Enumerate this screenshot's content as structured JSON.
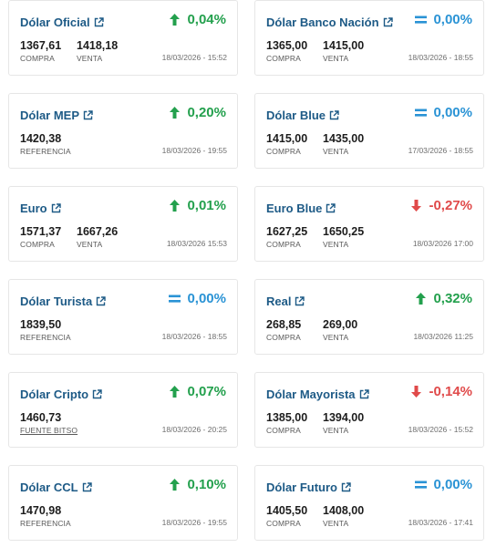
{
  "colors": {
    "up": "#23a04d",
    "down": "#e04a4a",
    "neutral": "#2a93d5",
    "title": "#1d5a86"
  },
  "cards": [
    {
      "title": "Dólar Oficial",
      "trend": "up",
      "change": "0,04%",
      "v1": "1367,61",
      "l1": "COMPRA",
      "v2": "1418,18",
      "l2": "VENTA",
      "date": "18/03/2026 - 15:52"
    },
    {
      "title": "Dólar Banco Nación",
      "trend": "eq",
      "change": "0,00%",
      "v1": "1365,00",
      "l1": "COMPRA",
      "v2": "1415,00",
      "l2": "VENTA",
      "date": "18/03/2026 - 18:55"
    },
    {
      "title": "Dólar MEP",
      "trend": "up",
      "change": "0,20%",
      "v1": "1420,38",
      "l1": "REFERENCIA",
      "date": "18/03/2026 - 19:55"
    },
    {
      "title": "Dólar Blue",
      "trend": "eq",
      "change": "0,00%",
      "v1": "1415,00",
      "l1": "COMPRA",
      "v2": "1435,00",
      "l2": "VENTA",
      "date": "17/03/2026 - 18:55"
    },
    {
      "title": "Euro",
      "trend": "up",
      "change": "0,01%",
      "v1": "1571,37",
      "l1": "COMPRA",
      "v2": "1667,26",
      "l2": "VENTA",
      "date": "18/03/2026 15:53"
    },
    {
      "title": "Euro Blue",
      "trend": "down",
      "change": "-0,27%",
      "v1": "1627,25",
      "l1": "COMPRA",
      "v2": "1650,25",
      "l2": "VENTA",
      "date": "18/03/2026 17:00"
    },
    {
      "title": "Dólar Turista",
      "trend": "eq",
      "change": "0,00%",
      "v1": "1839,50",
      "l1": "REFERENCIA",
      "date": "18/03/2026 - 18:55"
    },
    {
      "title": "Real",
      "trend": "up",
      "change": "0,32%",
      "v1": "268,85",
      "l1": "COMPRA",
      "v2": "269,00",
      "l2": "VENTA",
      "date": "18/03/2026 11:25"
    },
    {
      "title": "Dólar Cripto",
      "trend": "up",
      "change": "0,07%",
      "v1": "1460,73",
      "l1": "FUENTE BITSO",
      "l1_link": true,
      "date": "18/03/2026 - 20:25"
    },
    {
      "title": "Dólar Mayorista",
      "trend": "down",
      "change": "-0,14%",
      "v1": "1385,00",
      "l1": "COMPRA",
      "v2": "1394,00",
      "l2": "VENTA",
      "date": "18/03/2026 - 15:52"
    },
    {
      "title": "Dólar CCL",
      "trend": "up",
      "change": "0,10%",
      "v1": "1470,98",
      "l1": "REFERENCIA",
      "date": "18/03/2026 - 19:55"
    },
    {
      "title": "Dólar Futuro",
      "trend": "eq",
      "change": "0,00%",
      "v1": "1405,50",
      "l1": "COMPRA",
      "v2": "1408,00",
      "l2": "VENTA",
      "date": "18/03/2026 - 17:41"
    }
  ]
}
